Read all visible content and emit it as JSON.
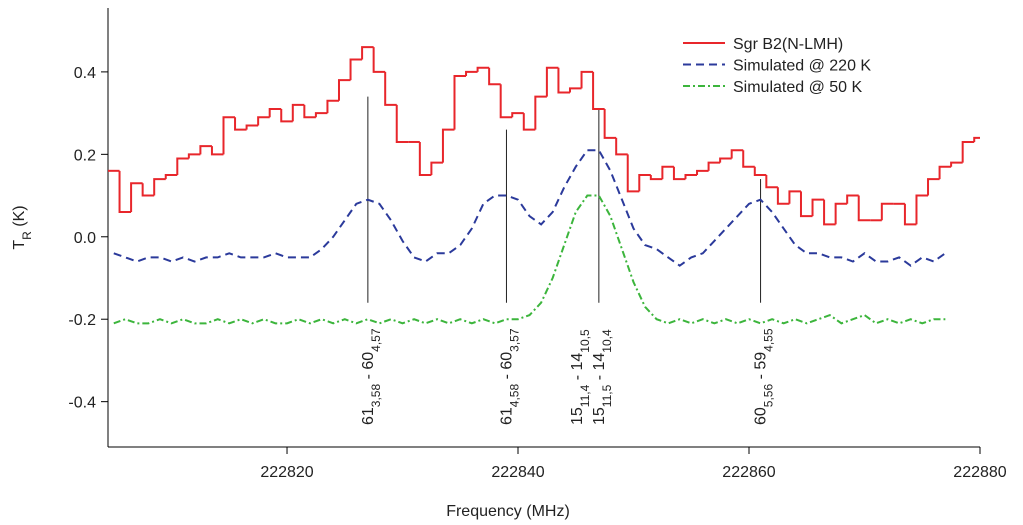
{
  "chart_data": {
    "type": "line",
    "xlabel": "Frequency (MHz)",
    "ylabel": [
      {
        "text": "T"
      },
      {
        "sub": "R"
      },
      {
        "text": " (K)"
      }
    ],
    "x": [
      222805,
      222806,
      222807,
      222808,
      222809,
      222810,
      222811,
      222812,
      222813,
      222814,
      222815,
      222816,
      222817,
      222818,
      222819,
      222820,
      222821,
      222822,
      222823,
      222824,
      222825,
      222826,
      222827,
      222828,
      222829,
      222830,
      222831,
      222832,
      222833,
      222834,
      222835,
      222836,
      222837,
      222838,
      222839,
      222840,
      222841,
      222842,
      222843,
      222844,
      222845,
      222846,
      222847,
      222848,
      222849,
      222850,
      222851,
      222852,
      222853,
      222854,
      222855,
      222856,
      222857,
      222858,
      222859,
      222860,
      222861,
      222862,
      222863,
      222864,
      222865,
      222866,
      222867,
      222868,
      222869,
      222870,
      222871,
      222872,
      222873,
      222874,
      222875,
      222876,
      222877,
      222878,
      222879,
      222880
    ],
    "series": [
      {
        "name": "Sgr B2(N-LMH)",
        "color": "#e8262b",
        "style": "steps",
        "values": [
          0.16,
          0.06,
          0.13,
          0.1,
          0.14,
          0.15,
          0.19,
          0.2,
          0.22,
          0.2,
          0.29,
          0.26,
          0.27,
          0.29,
          0.31,
          0.28,
          0.32,
          0.29,
          0.3,
          0.33,
          0.38,
          0.43,
          0.46,
          0.4,
          0.32,
          0.23,
          0.23,
          0.15,
          0.18,
          0.26,
          0.39,
          0.4,
          0.41,
          0.37,
          0.29,
          0.3,
          0.26,
          0.34,
          0.41,
          0.35,
          0.36,
          0.4,
          0.31,
          0.24,
          0.2,
          0.11,
          0.15,
          0.14,
          0.17,
          0.14,
          0.15,
          0.16,
          0.18,
          0.19,
          0.21,
          0.17,
          0.15,
          0.12,
          0.08,
          0.11,
          0.05,
          0.09,
          0.03,
          0.08,
          0.1,
          0.04,
          0.04,
          0.08,
          0.08,
          0.03,
          0.1,
          0.14,
          0.17,
          0.18,
          0.23,
          0.24
        ]
      },
      {
        "name": "Simulated @ 220 K",
        "color": "#2b3a9b",
        "style": "dashed",
        "values": [
          -0.04,
          -0.05,
          -0.06,
          -0.05,
          -0.05,
          -0.06,
          -0.05,
          -0.06,
          -0.05,
          -0.05,
          -0.04,
          -0.05,
          -0.05,
          -0.05,
          -0.04,
          -0.05,
          -0.05,
          -0.05,
          -0.03,
          0.0,
          0.04,
          0.08,
          0.09,
          0.08,
          0.04,
          -0.01,
          -0.05,
          -0.06,
          -0.04,
          -0.04,
          -0.02,
          0.02,
          0.08,
          0.1,
          0.1,
          0.09,
          0.05,
          0.03,
          0.06,
          0.12,
          0.17,
          0.21,
          0.21,
          0.16,
          0.09,
          0.02,
          -0.02,
          -0.03,
          -0.05,
          -0.07,
          -0.05,
          -0.04,
          -0.01,
          0.02,
          0.05,
          0.08,
          0.09,
          0.06,
          0.02,
          -0.02,
          -0.04,
          -0.04,
          -0.05,
          -0.05,
          -0.06,
          -0.04,
          -0.06,
          -0.06,
          -0.05,
          -0.07,
          -0.05,
          -0.06,
          -0.04,
          null,
          null,
          null
        ]
      },
      {
        "name": "Simulated @ 50 K",
        "color": "#3cb53c",
        "style": "dashdot",
        "values": [
          -0.21,
          -0.2,
          -0.21,
          -0.21,
          -0.2,
          -0.21,
          -0.2,
          -0.21,
          -0.21,
          -0.2,
          -0.21,
          -0.2,
          -0.21,
          -0.2,
          -0.21,
          -0.21,
          -0.2,
          -0.21,
          -0.2,
          -0.21,
          -0.2,
          -0.21,
          -0.2,
          -0.21,
          -0.2,
          -0.21,
          -0.2,
          -0.21,
          -0.2,
          -0.21,
          -0.2,
          -0.21,
          -0.2,
          -0.21,
          -0.2,
          -0.2,
          -0.19,
          -0.16,
          -0.1,
          -0.02,
          0.06,
          0.1,
          0.1,
          0.05,
          -0.03,
          -0.11,
          -0.17,
          -0.2,
          -0.21,
          -0.2,
          -0.21,
          -0.2,
          -0.21,
          -0.2,
          -0.21,
          -0.2,
          -0.21,
          -0.2,
          -0.21,
          -0.2,
          -0.21,
          -0.2,
          -0.19,
          -0.21,
          -0.2,
          -0.19,
          -0.21,
          -0.2,
          -0.21,
          -0.2,
          -0.21,
          -0.2,
          -0.2,
          null,
          null,
          null
        ]
      }
    ],
    "xlim": [
      222804.5,
      222880
    ],
    "ylim": [
      -0.51,
      0.555
    ],
    "xticks": [
      222820,
      222840,
      222860,
      222880
    ],
    "yticks": [
      -0.4,
      -0.2,
      {
        "value": 0,
        "label": "0.0"
      },
      0.2,
      0.4
    ],
    "legend": "upper right",
    "annotations": [
      {
        "x": 222827,
        "y": [
          -0.16,
          0.34
        ],
        "lines": [
          [
            {
              "text": "61"
            },
            {
              "sub": "3,58"
            },
            {
              "text": " - 60"
            },
            {
              "sub": "4,57"
            }
          ]
        ]
      },
      {
        "x": 222839,
        "y": [
          -0.16,
          0.26
        ],
        "lines": [
          [
            {
              "text": "61"
            },
            {
              "sub": "4,58"
            },
            {
              "text": " - 60"
            },
            {
              "sub": "3,57"
            }
          ]
        ]
      },
      {
        "x": 222847,
        "y": [
          -0.16,
          0.31
        ],
        "lines": [
          [
            {
              "text": "15"
            },
            {
              "sub": "11,4"
            },
            {
              "text": " - 14"
            },
            {
              "sub": "10,5"
            }
          ],
          [
            {
              "text": "15"
            },
            {
              "sub": "11,5"
            },
            {
              "text": " - 14"
            },
            {
              "sub": "10,4"
            }
          ]
        ]
      },
      {
        "x": 222861,
        "y": [
          -0.16,
          0.14
        ],
        "lines": [
          [
            {
              "text": "60"
            },
            {
              "sub": "5,56"
            },
            {
              "text": " - 59"
            },
            {
              "sub": "4,55"
            }
          ]
        ]
      }
    ]
  }
}
